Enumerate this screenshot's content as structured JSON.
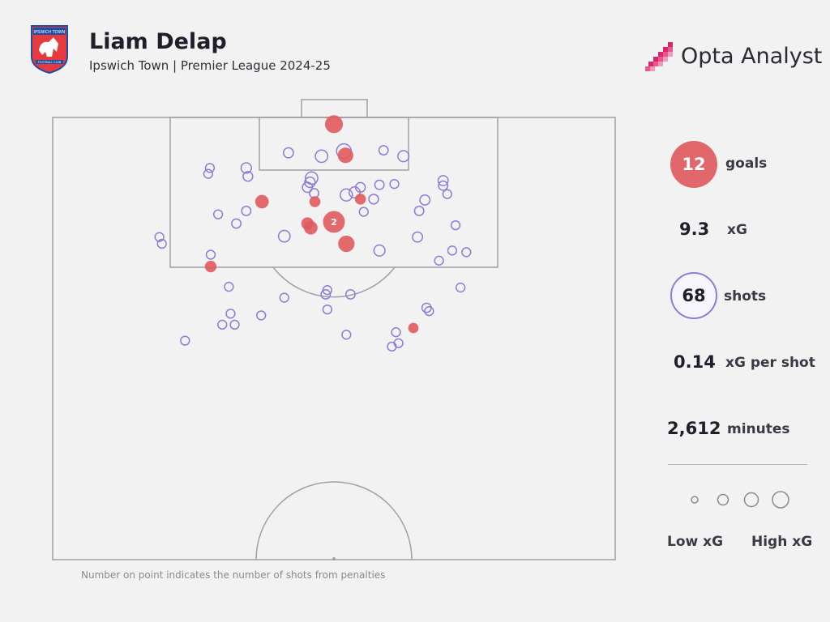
{
  "header": {
    "player": "Liam Delap",
    "subtitle": "Ipswich Town | Premier League 2024-25",
    "brand": "Opta Analyst",
    "crest_icon": "ipswich-town-crest"
  },
  "stats": {
    "goals_value": "12",
    "goals_label": "goals",
    "xg_value": "9.3",
    "xg_label": "xG",
    "shots_value": "68",
    "shots_label": "shots",
    "xg_per_shot_value": "0.14",
    "xg_per_shot_label": "xG per shot",
    "minutes_value": "2,612",
    "minutes_label": "minutes"
  },
  "legend": {
    "low_label": "Low xG",
    "high_label": "High xG"
  },
  "footnote": "Number on point indicates the number of shots from penalties",
  "colors": {
    "goal": "#e05b5e",
    "shot": "#8e7cd4",
    "pitch_line": "#a0a0a6",
    "background": "#f2f2f2"
  },
  "chart_data": {
    "type": "scatter",
    "description_units": "x = metres from left touchline (0-68), y = metres from goal line (0-52.5, half pitch); xg = expected goals value (estimated from marker size); goal = true if shot was a goal; penalties = number of penalty shots at that point",
    "xlim": [
      0,
      68
    ],
    "ylim": [
      0,
      52.5
    ],
    "points": [
      {
        "x": 34.0,
        "y": 0.8,
        "xg": 0.45,
        "goal": true
      },
      {
        "x": 35.2,
        "y": 4.0,
        "xg": 0.25,
        "goal": false
      },
      {
        "x": 35.4,
        "y": 4.5,
        "xg": 0.3,
        "goal": true
      },
      {
        "x": 32.5,
        "y": 4.6,
        "xg": 0.15,
        "goal": false
      },
      {
        "x": 28.5,
        "y": 4.2,
        "xg": 0.07,
        "goal": false
      },
      {
        "x": 40.0,
        "y": 3.9,
        "xg": 0.05,
        "goal": false
      },
      {
        "x": 42.4,
        "y": 4.6,
        "xg": 0.1,
        "goal": false
      },
      {
        "x": 23.4,
        "y": 6.0,
        "xg": 0.08,
        "goal": false
      },
      {
        "x": 18.8,
        "y": 6.7,
        "xg": 0.04,
        "goal": false
      },
      {
        "x": 23.6,
        "y": 7.0,
        "xg": 0.06,
        "goal": false
      },
      {
        "x": 31.3,
        "y": 7.2,
        "xg": 0.15,
        "goal": false
      },
      {
        "x": 31.1,
        "y": 7.7,
        "xg": 0.08,
        "goal": false
      },
      {
        "x": 30.8,
        "y": 8.3,
        "xg": 0.07,
        "goal": false
      },
      {
        "x": 37.2,
        "y": 8.3,
        "xg": 0.06,
        "goal": false
      },
      {
        "x": 39.5,
        "y": 8.0,
        "xg": 0.05,
        "goal": false
      },
      {
        "x": 41.3,
        "y": 7.9,
        "xg": 0.04,
        "goal": false
      },
      {
        "x": 47.2,
        "y": 7.5,
        "xg": 0.07,
        "goal": false
      },
      {
        "x": 47.2,
        "y": 8.1,
        "xg": 0.05,
        "goal": false
      },
      {
        "x": 47.7,
        "y": 9.1,
        "xg": 0.04,
        "goal": false
      },
      {
        "x": 31.6,
        "y": 9.0,
        "xg": 0.05,
        "goal": false
      },
      {
        "x": 35.5,
        "y": 9.2,
        "xg": 0.14,
        "goal": false
      },
      {
        "x": 36.5,
        "y": 8.9,
        "xg": 0.1,
        "goal": false
      },
      {
        "x": 38.8,
        "y": 9.7,
        "xg": 0.06,
        "goal": false
      },
      {
        "x": 45.0,
        "y": 9.8,
        "xg": 0.07,
        "goal": false
      },
      {
        "x": 25.3,
        "y": 10.0,
        "xg": 0.2,
        "goal": true
      },
      {
        "x": 31.7,
        "y": 10.0,
        "xg": 0.1,
        "goal": true
      },
      {
        "x": 37.2,
        "y": 9.7,
        "xg": 0.1,
        "goal": true
      },
      {
        "x": 23.4,
        "y": 11.1,
        "xg": 0.05,
        "goal": false
      },
      {
        "x": 20.0,
        "y": 11.5,
        "xg": 0.04,
        "goal": false
      },
      {
        "x": 37.6,
        "y": 11.2,
        "xg": 0.04,
        "goal": false
      },
      {
        "x": 44.3,
        "y": 11.1,
        "xg": 0.05,
        "goal": false
      },
      {
        "x": 22.2,
        "y": 12.6,
        "xg": 0.05,
        "goal": false
      },
      {
        "x": 34.0,
        "y": 12.4,
        "xg": 0.76,
        "goal": true,
        "penalties": 2
      },
      {
        "x": 30.8,
        "y": 12.6,
        "xg": 0.15,
        "goal": true
      },
      {
        "x": 31.2,
        "y": 13.1,
        "xg": 0.2,
        "goal": true
      },
      {
        "x": 48.7,
        "y": 12.8,
        "xg": 0.04,
        "goal": false
      },
      {
        "x": 12.9,
        "y": 14.2,
        "xg": 0.04,
        "goal": false
      },
      {
        "x": 28.0,
        "y": 14.1,
        "xg": 0.12,
        "goal": false
      },
      {
        "x": 44.1,
        "y": 14.2,
        "xg": 0.07,
        "goal": false
      },
      {
        "x": 35.5,
        "y": 15.0,
        "xg": 0.35,
        "goal": true
      },
      {
        "x": 39.5,
        "y": 15.8,
        "xg": 0.1,
        "goal": false
      },
      {
        "x": 48.3,
        "y": 15.8,
        "xg": 0.04,
        "goal": false
      },
      {
        "x": 19.1,
        "y": 16.3,
        "xg": 0.04,
        "goal": false
      },
      {
        "x": 46.7,
        "y": 17.0,
        "xg": 0.04,
        "goal": false
      },
      {
        "x": 19.1,
        "y": 17.7,
        "xg": 0.12,
        "goal": true
      },
      {
        "x": 21.3,
        "y": 20.1,
        "xg": 0.04,
        "goal": false
      },
      {
        "x": 49.3,
        "y": 20.2,
        "xg": 0.04,
        "goal": false
      },
      {
        "x": 33.2,
        "y": 20.5,
        "xg": 0.04,
        "goal": false
      },
      {
        "x": 33.0,
        "y": 21.0,
        "xg": 0.05,
        "goal": false
      },
      {
        "x": 36.0,
        "y": 21.0,
        "xg": 0.05,
        "goal": false
      },
      {
        "x": 28.0,
        "y": 21.4,
        "xg": 0.04,
        "goal": false
      },
      {
        "x": 45.2,
        "y": 22.6,
        "xg": 0.05,
        "goal": false
      },
      {
        "x": 33.2,
        "y": 22.8,
        "xg": 0.04,
        "goal": false
      },
      {
        "x": 45.5,
        "y": 23.0,
        "xg": 0.04,
        "goal": false
      },
      {
        "x": 21.5,
        "y": 23.3,
        "xg": 0.04,
        "goal": false
      },
      {
        "x": 25.2,
        "y": 23.5,
        "xg": 0.04,
        "goal": false
      },
      {
        "x": 20.5,
        "y": 24.6,
        "xg": 0.04,
        "goal": false
      },
      {
        "x": 22.0,
        "y": 24.6,
        "xg": 0.04,
        "goal": false
      },
      {
        "x": 43.6,
        "y": 25.0,
        "xg": 0.08,
        "goal": true
      },
      {
        "x": 41.5,
        "y": 25.5,
        "xg": 0.04,
        "goal": false
      },
      {
        "x": 35.5,
        "y": 25.8,
        "xg": 0.04,
        "goal": false
      },
      {
        "x": 16.0,
        "y": 26.5,
        "xg": 0.04,
        "goal": false
      },
      {
        "x": 41.8,
        "y": 26.8,
        "xg": 0.04,
        "goal": false
      },
      {
        "x": 41.0,
        "y": 27.2,
        "xg": 0.04,
        "goal": false
      },
      {
        "x": 13.2,
        "y": 15.0,
        "xg": 0.04,
        "goal": false
      },
      {
        "x": 19.0,
        "y": 6.0,
        "xg": 0.04,
        "goal": false
      },
      {
        "x": 50.0,
        "y": 16.0,
        "xg": 0.04,
        "goal": false
      }
    ]
  }
}
